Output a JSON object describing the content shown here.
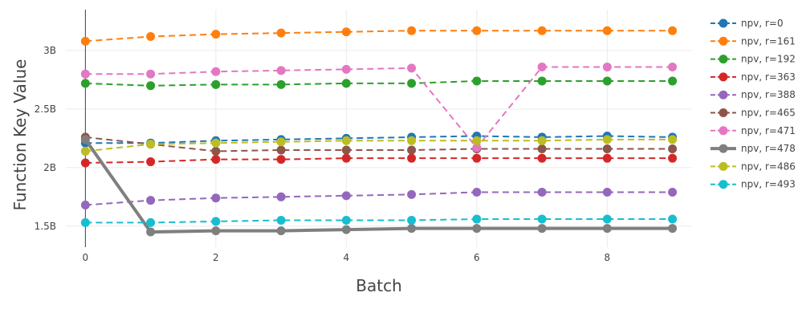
{
  "chart_data": {
    "type": "line",
    "title": "",
    "xlabel": "Batch",
    "ylabel": "Function Key Value",
    "x": [
      0,
      1,
      2,
      3,
      4,
      5,
      6,
      7,
      8,
      9
    ],
    "xlim": [
      -0.3,
      9.3
    ],
    "ylim": [
      1.32,
      3.35
    ],
    "x_ticks": [
      0,
      2,
      4,
      6,
      8
    ],
    "x_tick_labels": [
      "0",
      "2",
      "4",
      "6",
      "8"
    ],
    "y_ticks": [
      1.5,
      2.0,
      2.5,
      3.0
    ],
    "y_tick_labels": [
      "1.5B",
      "2B",
      "2.5B",
      "3B"
    ],
    "grid": true,
    "legend_position": "right",
    "series": [
      {
        "name": "npv, r=0",
        "color": "#1f77b4",
        "dash": true,
        "values": [
          2.21,
          2.21,
          2.23,
          2.24,
          2.25,
          2.26,
          2.27,
          2.26,
          2.27,
          2.26
        ]
      },
      {
        "name": "npv, r=161",
        "color": "#ff7f0e",
        "dash": true,
        "values": [
          3.08,
          3.12,
          3.14,
          3.15,
          3.16,
          3.17,
          3.17,
          3.17,
          3.17,
          3.17
        ]
      },
      {
        "name": "npv, r=192",
        "color": "#2ca02c",
        "dash": true,
        "values": [
          2.72,
          2.7,
          2.71,
          2.71,
          2.72,
          2.72,
          2.74,
          2.74,
          2.74,
          2.74
        ]
      },
      {
        "name": "npv, r=363",
        "color": "#d62728",
        "dash": true,
        "values": [
          2.04,
          2.05,
          2.07,
          2.07,
          2.08,
          2.08,
          2.08,
          2.08,
          2.08,
          2.08
        ]
      },
      {
        "name": "npv, r=388",
        "color": "#9467bd",
        "dash": true,
        "values": [
          1.68,
          1.72,
          1.74,
          1.75,
          1.76,
          1.77,
          1.79,
          1.79,
          1.79,
          1.79
        ]
      },
      {
        "name": "npv, r=465",
        "color": "#8c564b",
        "dash": true,
        "values": [
          2.26,
          2.2,
          2.14,
          2.15,
          2.15,
          2.15,
          2.16,
          2.16,
          2.16,
          2.16
        ]
      },
      {
        "name": "npv, r=471",
        "color": "#e377c2",
        "dash": true,
        "values": [
          2.8,
          2.8,
          2.82,
          2.83,
          2.84,
          2.85,
          2.17,
          2.86,
          2.86,
          2.86
        ]
      },
      {
        "name": "npv, r=478",
        "color": "#7f7f7f",
        "dash": false,
        "values": [
          2.24,
          1.45,
          1.46,
          1.46,
          1.47,
          1.48,
          1.48,
          1.48,
          1.48,
          1.48
        ]
      },
      {
        "name": "npv, r=486",
        "color": "#bcbd22",
        "dash": true,
        "values": [
          2.14,
          2.2,
          2.21,
          2.22,
          2.23,
          2.23,
          2.23,
          2.23,
          2.24,
          2.24
        ]
      },
      {
        "name": "npv, r=493",
        "color": "#17becf",
        "dash": true,
        "values": [
          1.53,
          1.53,
          1.54,
          1.55,
          1.55,
          1.55,
          1.56,
          1.56,
          1.56,
          1.56
        ]
      }
    ]
  }
}
